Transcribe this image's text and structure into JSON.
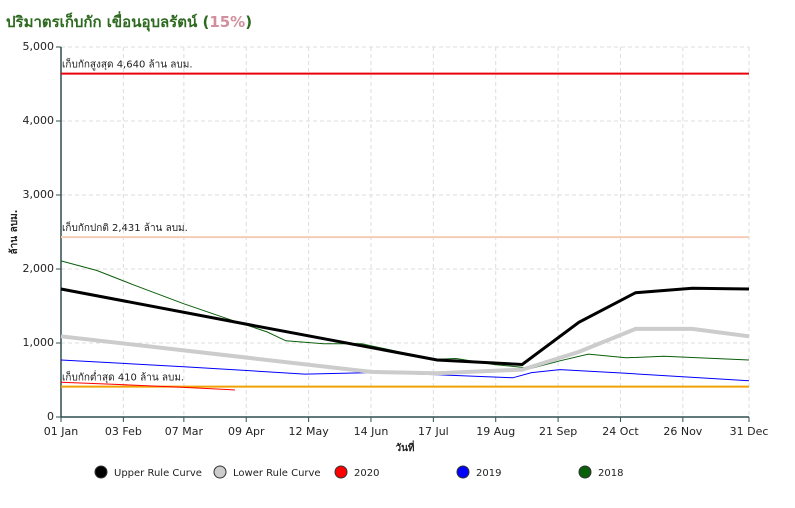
{
  "chart_data": {
    "type": "line",
    "title": "ปริมาตรเก็บกัก เขื่อนอุบลรัตน์ (",
    "title_percent": "15%",
    "title_end": ")",
    "y_label": "ล้าน ลบม.",
    "x_label": "วันที่",
    "xlim": [
      1,
      365
    ],
    "xticks": [
      {
        "value": 1,
        "label": "01 Jan"
      },
      {
        "value": 34,
        "label": "03 Feb"
      },
      {
        "value": 66,
        "label": "07 Mar"
      },
      {
        "value": 99,
        "label": "09 Apr"
      },
      {
        "value": 132,
        "label": "12 May"
      },
      {
        "value": 165,
        "label": "14 Jun"
      },
      {
        "value": 198,
        "label": "17 Jul"
      },
      {
        "value": 231,
        "label": "19 Aug"
      },
      {
        "value": 264,
        "label": "21 Sep"
      },
      {
        "value": 297,
        "label": "24 Oct"
      },
      {
        "value": 330,
        "label": "26 Nov"
      },
      {
        "value": 365,
        "label": "31 Dec"
      }
    ],
    "ylim": [
      0,
      5000
    ],
    "yticks": [
      0,
      {
        "value": 1000,
        "label": "1,000"
      },
      {
        "value": 2000,
        "label": "2,000"
      },
      {
        "value": 3000,
        "label": "3,000"
      },
      {
        "value": 4000,
        "label": "4,000"
      },
      {
        "value": 5000,
        "label": "5,000"
      }
    ],
    "grid": true,
    "reference_lines": [
      {
        "label": "เก็บกักสูงสุด 4,640 ล้าน ลบม.",
        "value": 4640,
        "color": "#e8000b"
      },
      {
        "label": "เก็บกักปกติ 2,431 ล้าน ลบม.",
        "value": 2431,
        "color": "#f5cdb6"
      },
      {
        "label": "เก็บกักต่ำสุด 410 ล้าน ลบม.",
        "value": 410,
        "color": "#f0a202"
      }
    ],
    "series": [
      {
        "name": "Upper Rule Curve",
        "color": "#000000",
        "width": 3,
        "x": [
          1,
          100,
          200,
          245,
          275,
          305,
          335,
          365
        ],
        "values": [
          1730,
          1250,
          770,
          710,
          1280,
          1680,
          1740,
          1730
        ]
      },
      {
        "name": "Lower Rule Curve",
        "color": "#cccccc",
        "width": 4,
        "x": [
          1,
          66,
          165,
          200,
          245,
          275,
          305,
          335,
          365
        ],
        "values": [
          1090,
          900,
          610,
          590,
          640,
          880,
          1190,
          1190,
          1090
        ]
      },
      {
        "name": "2020",
        "color": "#ff0000",
        "width": 1,
        "x": [
          1,
          30,
          66,
          90,
          93
        ],
        "values": [
          470,
          440,
          400,
          370,
          365
        ]
      },
      {
        "name": "2019",
        "color": "#0000ff",
        "width": 1,
        "x": [
          1,
          66,
          130,
          165,
          200,
          240,
          250,
          265,
          300,
          365
        ],
        "values": [
          770,
          680,
          580,
          600,
          570,
          530,
          600,
          640,
          590,
          490
        ]
      },
      {
        "name": "2018",
        "color": "#0b5e0b",
        "width": 1,
        "x": [
          1,
          20,
          40,
          66,
          90,
          110,
          120,
          140,
          160,
          180,
          200,
          210,
          230,
          250,
          265,
          280,
          300,
          320,
          365
        ],
        "values": [
          2110,
          1980,
          1780,
          1530,
          1320,
          1150,
          1030,
          990,
          990,
          880,
          780,
          790,
          710,
          660,
          760,
          850,
          800,
          820,
          770
        ]
      }
    ]
  }
}
